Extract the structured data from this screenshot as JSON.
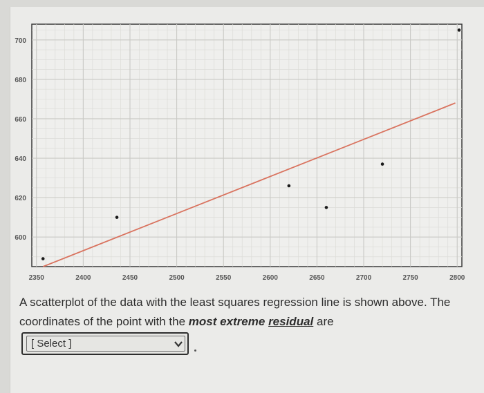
{
  "chart_data": {
    "type": "scatter",
    "x_ticks": [
      2350,
      2400,
      2450,
      2500,
      2550,
      2600,
      2650,
      2700,
      2750,
      2800
    ],
    "y_ticks": [
      600,
      620,
      640,
      660,
      680,
      700
    ],
    "xlim": [
      2345,
      2805
    ],
    "ylim": [
      585,
      708
    ],
    "grid": true,
    "points": [
      {
        "x": 2357,
        "y": 589
      },
      {
        "x": 2436,
        "y": 610
      },
      {
        "x": 2620,
        "y": 626
      },
      {
        "x": 2660,
        "y": 615
      },
      {
        "x": 2720,
        "y": 637
      },
      {
        "x": 2802,
        "y": 705
      }
    ],
    "regression_line": {
      "x": [
        2357,
        2798
      ],
      "y": [
        585,
        668
      ],
      "color": "#d9735f"
    },
    "point_color": "#1a1a1a"
  },
  "question": {
    "text_part1": "A scatterplot of the data with the least squares regression line is shown above. The coordinates of the point with the ",
    "emphasis1": "most extreme",
    "emphasis2": "residual",
    "text_part2": " are"
  },
  "dropdown": {
    "selected": "[ Select ]"
  }
}
